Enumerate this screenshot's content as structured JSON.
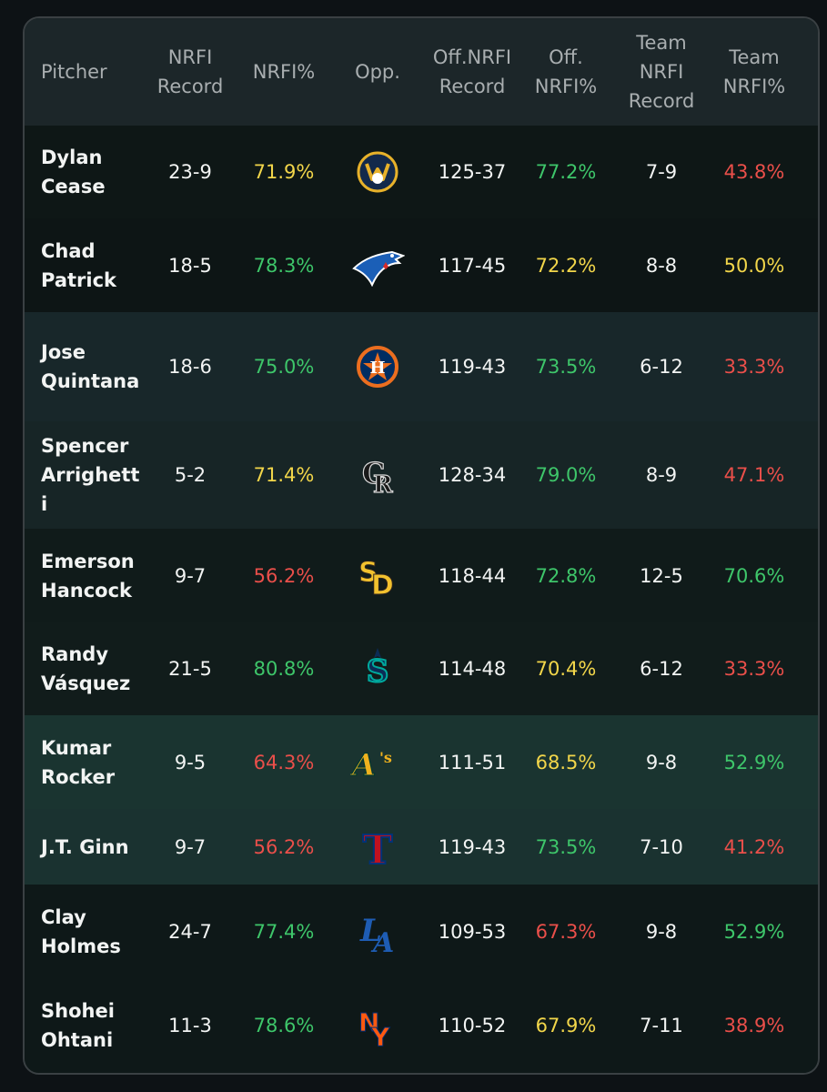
{
  "columns": {
    "pitcher": "Pitcher",
    "nrfi_record": "NRFI\nRecord",
    "nrfi_pct": "NRFI%",
    "opp": "Opp.",
    "off_nrfi_record": "Off.NRFI\nRecord",
    "off_nrfi_pct": "Off.\nNRFI%",
    "team_nrfi_record": "Team\nNRFI\nRecord",
    "team_nrfi_pct": "Team\nNRFI%"
  },
  "colors": {
    "green": "#3ec66a",
    "yellow": "#f2d64a",
    "red": "#ea4f4a"
  },
  "rows": [
    {
      "pitcher": "Dylan\nCease",
      "nrfi_record": "23-9",
      "nrfi_pct": "71.9%",
      "nrfi_pct_color": "yellow",
      "opp_logo": "milwaukee-brewers-logo-icon",
      "off_nrfi_record": "125-37",
      "off_nrfi_pct": "77.2%",
      "off_nrfi_pct_color": "green",
      "team_nrfi_record": "7-9",
      "team_nrfi_pct": "43.8%",
      "team_nrfi_pct_color": "red"
    },
    {
      "pitcher": "Chad\nPatrick",
      "nrfi_record": "18-5",
      "nrfi_pct": "78.3%",
      "nrfi_pct_color": "green",
      "opp_logo": "toronto-blue-jays-logo-icon",
      "off_nrfi_record": "117-45",
      "off_nrfi_pct": "72.2%",
      "off_nrfi_pct_color": "yellow",
      "team_nrfi_record": "8-8",
      "team_nrfi_pct": "50.0%",
      "team_nrfi_pct_color": "yellow"
    },
    {
      "pitcher": "Jose\nQuintana",
      "nrfi_record": "18-6",
      "nrfi_pct": "75.0%",
      "nrfi_pct_color": "green",
      "opp_logo": "houston-astros-logo-icon",
      "off_nrfi_record": "119-43",
      "off_nrfi_pct": "73.5%",
      "off_nrfi_pct_color": "green",
      "team_nrfi_record": "6-12",
      "team_nrfi_pct": "33.3%",
      "team_nrfi_pct_color": "red"
    },
    {
      "pitcher": "Spencer\nArrighett\ni",
      "nrfi_record": "5-2",
      "nrfi_pct": "71.4%",
      "nrfi_pct_color": "yellow",
      "opp_logo": "colorado-rockies-logo-icon",
      "off_nrfi_record": "128-34",
      "off_nrfi_pct": "79.0%",
      "off_nrfi_pct_color": "green",
      "team_nrfi_record": "8-9",
      "team_nrfi_pct": "47.1%",
      "team_nrfi_pct_color": "red"
    },
    {
      "pitcher": "Emerson\nHancock",
      "nrfi_record": "9-7",
      "nrfi_pct": "56.2%",
      "nrfi_pct_color": "red",
      "opp_logo": "san-diego-padres-logo-icon",
      "off_nrfi_record": "118-44",
      "off_nrfi_pct": "72.8%",
      "off_nrfi_pct_color": "green",
      "team_nrfi_record": "12-5",
      "team_nrfi_pct": "70.6%",
      "team_nrfi_pct_color": "green"
    },
    {
      "pitcher": "Randy\nVásquez",
      "nrfi_record": "21-5",
      "nrfi_pct": "80.8%",
      "nrfi_pct_color": "green",
      "opp_logo": "seattle-mariners-logo-icon",
      "off_nrfi_record": "114-48",
      "off_nrfi_pct": "70.4%",
      "off_nrfi_pct_color": "yellow",
      "team_nrfi_record": "6-12",
      "team_nrfi_pct": "33.3%",
      "team_nrfi_pct_color": "red"
    },
    {
      "pitcher": "Kumar\nRocker",
      "nrfi_record": "9-5",
      "nrfi_pct": "64.3%",
      "nrfi_pct_color": "red",
      "opp_logo": "athletics-logo-icon",
      "off_nrfi_record": "111-51",
      "off_nrfi_pct": "68.5%",
      "off_nrfi_pct_color": "yellow",
      "team_nrfi_record": "9-8",
      "team_nrfi_pct": "52.9%",
      "team_nrfi_pct_color": "green"
    },
    {
      "pitcher": " J.T. Ginn",
      "nrfi_record": "9-7",
      "nrfi_pct": "56.2%",
      "nrfi_pct_color": "red",
      "opp_logo": "texas-rangers-logo-icon",
      "off_nrfi_record": "119-43",
      "off_nrfi_pct": "73.5%",
      "off_nrfi_pct_color": "green",
      "team_nrfi_record": "7-10",
      "team_nrfi_pct": "41.2%",
      "team_nrfi_pct_color": "red"
    },
    {
      "pitcher": "Clay\nHolmes",
      "nrfi_record": "24-7",
      "nrfi_pct": "77.4%",
      "nrfi_pct_color": "green",
      "opp_logo": "los-angeles-dodgers-logo-icon",
      "off_nrfi_record": "109-53",
      "off_nrfi_pct": "67.3%",
      "off_nrfi_pct_color": "red",
      "team_nrfi_record": "9-8",
      "team_nrfi_pct": "52.9%",
      "team_nrfi_pct_color": "green"
    },
    {
      "pitcher": "Shohei\nOhtani",
      "nrfi_record": "11-3",
      "nrfi_pct": "78.6%",
      "nrfi_pct_color": "green",
      "opp_logo": "new-york-mets-logo-icon",
      "off_nrfi_record": "110-52",
      "off_nrfi_pct": "67.9%",
      "off_nrfi_pct_color": "yellow",
      "team_nrfi_record": "7-11",
      "team_nrfi_pct": "38.9%",
      "team_nrfi_pct_color": "red"
    }
  ]
}
